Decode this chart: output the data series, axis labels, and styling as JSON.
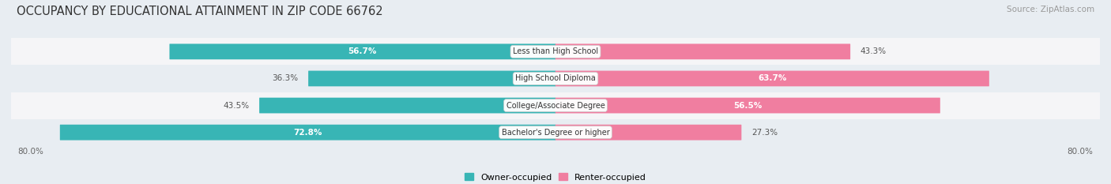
{
  "title": "OCCUPANCY BY EDUCATIONAL ATTAINMENT IN ZIP CODE 66762",
  "source": "Source: ZipAtlas.com",
  "categories": [
    "Less than High School",
    "High School Diploma",
    "College/Associate Degree",
    "Bachelor's Degree or higher"
  ],
  "owner_values": [
    56.7,
    36.3,
    43.5,
    72.8
  ],
  "renter_values": [
    43.3,
    63.7,
    56.5,
    27.3
  ],
  "owner_color": "#38b5b5",
  "renter_color": "#f07ea0",
  "owner_label": "Owner-occupied",
  "renter_label": "Renter-occupied",
  "xlim_left": -80.0,
  "xlim_right": 80.0,
  "x_left_label": "80.0%",
  "x_right_label": "80.0%",
  "bar_height": 0.52,
  "background_color": "#e8edf2",
  "row_colors": [
    "#f5f5f7",
    "#e8edf2"
  ],
  "title_fontsize": 10.5,
  "source_fontsize": 7.5
}
